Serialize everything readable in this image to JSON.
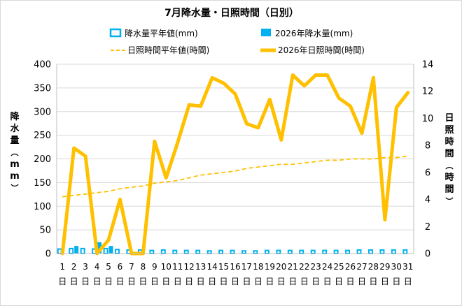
{
  "chart_data": {
    "type": "bar+line",
    "title": "7月降水量・日照時間（日別）",
    "categories": [
      "1日",
      "2日",
      "3日",
      "4日",
      "5日",
      "6日",
      "7日",
      "8日",
      "9日",
      "10日",
      "11日",
      "12日",
      "13日",
      "14日",
      "15日",
      "16日",
      "17日",
      "18日",
      "19日",
      "20日",
      "21日",
      "22日",
      "23日",
      "24日",
      "25日",
      "26日",
      "27日",
      "28日",
      "29日",
      "30日",
      "31日"
    ],
    "y_left": {
      "label": "降水量（mm）",
      "ylim": [
        0,
        400
      ],
      "ticks": [
        0,
        50,
        100,
        150,
        200,
        250,
        300,
        350,
        400
      ]
    },
    "y_right": {
      "label": "日照時間（時間）",
      "ylim": [
        0,
        14
      ],
      "ticks": [
        0,
        2,
        4,
        6,
        8,
        10,
        12,
        14
      ]
    },
    "grid": true,
    "legend_position": "top",
    "series": [
      {
        "name": "降水量平年値(mm)",
        "type": "bar",
        "axis": "left",
        "color": "#00b0f0",
        "values": [
          11,
          12,
          12,
          11,
          12,
          10,
          9,
          9,
          8,
          9,
          8,
          8,
          8,
          7,
          8,
          8,
          7,
          7,
          8,
          8,
          8,
          8,
          8,
          8,
          8,
          8,
          9,
          9,
          9,
          9,
          9
        ]
      },
      {
        "name": "2026年降水量(mm)",
        "type": "bar",
        "axis": "left",
        "color": "#00b0f0",
        "values": [
          0,
          16,
          0,
          24,
          16,
          0,
          0,
          0,
          0,
          0,
          0,
          0,
          0,
          0,
          0,
          0,
          0,
          0,
          0,
          0,
          0,
          0,
          0,
          0,
          0,
          0,
          0,
          0,
          0,
          0,
          0
        ]
      },
      {
        "name": "日照時間平年値(時間)",
        "type": "line",
        "axis": "right",
        "color": "#ffc000",
        "dashed": true,
        "values": [
          4.2,
          4.3,
          4.4,
          4.5,
          4.6,
          4.8,
          4.9,
          5.0,
          5.2,
          5.3,
          5.4,
          5.6,
          5.8,
          5.9,
          6.0,
          6.1,
          6.3,
          6.4,
          6.5,
          6.6,
          6.6,
          6.7,
          6.8,
          6.9,
          6.9,
          7.0,
          7.0,
          7.0,
          7.1,
          7.1,
          7.2
        ]
      },
      {
        "name": "2026年日照時間(時間)",
        "type": "line",
        "axis": "right",
        "color": "#ffc000",
        "dashed": false,
        "values": [
          0.0,
          7.8,
          7.2,
          0.0,
          1.0,
          4.0,
          0.0,
          0.0,
          8.3,
          5.6,
          8.2,
          11.0,
          10.9,
          13.0,
          12.6,
          11.8,
          9.6,
          9.3,
          11.4,
          8.4,
          13.2,
          12.4,
          13.2,
          13.2,
          11.5,
          10.9,
          8.9,
          13.0,
          2.5,
          10.8,
          11.9
        ]
      }
    ]
  }
}
